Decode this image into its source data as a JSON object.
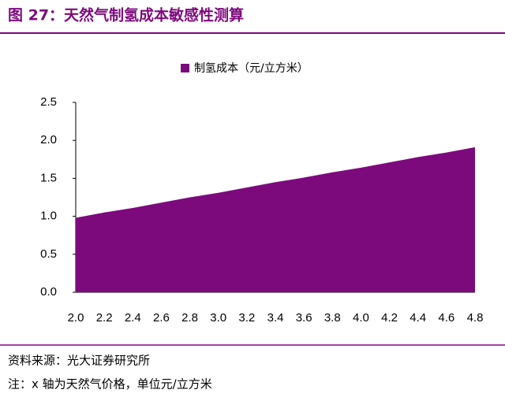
{
  "chart_data": {
    "type": "area",
    "title": "图 27：天然气制氢成本敏感性测算",
    "categories": [
      "2.0",
      "2.2",
      "2.4",
      "2.6",
      "2.8",
      "3.0",
      "3.2",
      "3.4",
      "3.6",
      "3.8",
      "4.0",
      "4.2",
      "4.4",
      "4.6",
      "4.8"
    ],
    "series": [
      {
        "name": "制氢成本（元/立方米）",
        "color": "#7d0a7d",
        "values": [
          0.98,
          1.05,
          1.11,
          1.18,
          1.25,
          1.31,
          1.38,
          1.45,
          1.51,
          1.58,
          1.64,
          1.71,
          1.78,
          1.84,
          1.91
        ]
      }
    ],
    "ylim": [
      0,
      2.5
    ],
    "yticks": [
      {
        "value": 0,
        "label": "0.0"
      },
      0.5,
      {
        "value": 1,
        "label": "1.0"
      },
      1.5,
      {
        "value": 2,
        "label": "2.0"
      },
      2.5
    ],
    "grid": false,
    "legend": "top",
    "source": "资料来源：光大证券研究所",
    "note": "注：x 轴为天然气价格，单位元/立方米"
  }
}
